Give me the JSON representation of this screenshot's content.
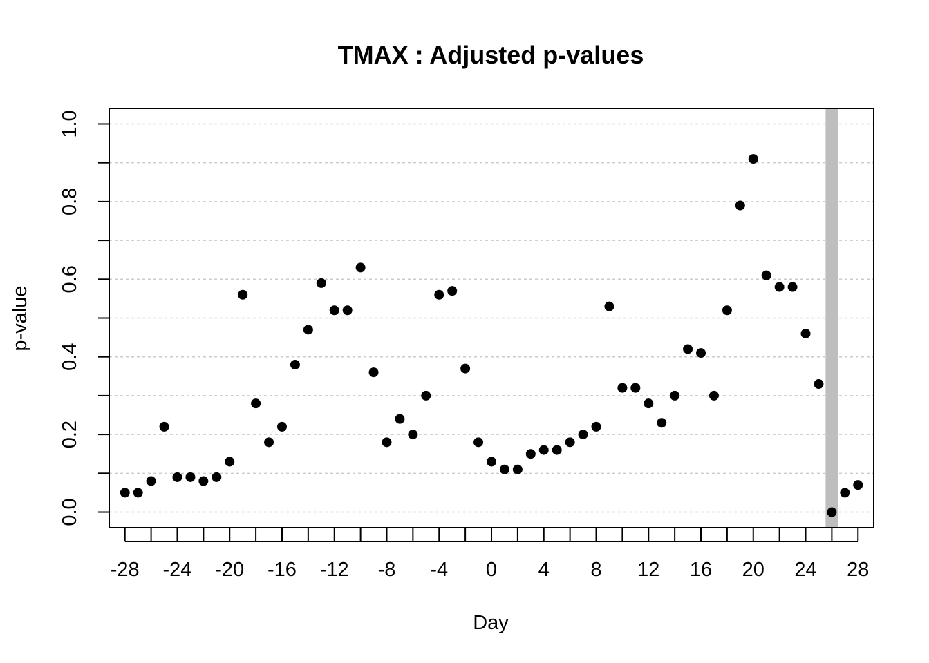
{
  "chart_data": {
    "type": "scatter",
    "title": "TMAX : Adjusted p-values",
    "xlabel": "Day",
    "ylabel": "p-value",
    "xlim": [
      -29.2,
      29.2
    ],
    "ylim": [
      -0.04,
      1.04
    ],
    "x_ticks": [
      -28,
      -26,
      -24,
      -22,
      -20,
      -18,
      -16,
      -14,
      -12,
      -10,
      -8,
      -6,
      -4,
      -2,
      0,
      2,
      4,
      6,
      8,
      10,
      12,
      14,
      16,
      18,
      20,
      22,
      24,
      26,
      28
    ],
    "x_tick_labels": [
      "-28",
      "",
      "-24",
      "",
      "-20",
      "",
      "-16",
      "",
      "-12",
      "",
      "-8",
      "",
      "-4",
      "",
      "0",
      "",
      "4",
      "",
      "8",
      "",
      "12",
      "",
      "16",
      "",
      "20",
      "",
      "24",
      "",
      "28"
    ],
    "y_ticks": [
      0.0,
      0.1,
      0.2,
      0.3,
      0.4,
      0.5,
      0.6,
      0.7,
      0.8,
      0.9,
      1.0
    ],
    "y_tick_labels": [
      "0.0",
      "",
      "0.2",
      "",
      "0.4",
      "",
      "0.6",
      "",
      "0.8",
      "",
      "1.0"
    ],
    "grid": "horizontal dotted",
    "highlight_x": 26,
    "colors": {
      "points": "#000000",
      "grid": "#cccccc",
      "highlight": "#bebebe"
    },
    "x": [
      -28,
      -27,
      -26,
      -25,
      -24,
      -23,
      -22,
      -21,
      -20,
      -19,
      -18,
      -17,
      -16,
      -15,
      -14,
      -13,
      -12,
      -11,
      -10,
      -9,
      -8,
      -7,
      -6,
      -5,
      -4,
      -3,
      -2,
      -1,
      0,
      1,
      2,
      3,
      4,
      5,
      6,
      7,
      8,
      9,
      10,
      11,
      12,
      13,
      14,
      15,
      16,
      17,
      18,
      19,
      20,
      21,
      22,
      23,
      24,
      25,
      26,
      27,
      28
    ],
    "y": [
      0.05,
      0.05,
      0.08,
      0.22,
      0.09,
      0.09,
      0.08,
      0.09,
      0.13,
      0.56,
      0.28,
      0.18,
      0.22,
      0.38,
      0.47,
      0.59,
      0.52,
      0.52,
      0.63,
      0.36,
      0.18,
      0.24,
      0.2,
      0.3,
      0.56,
      0.57,
      0.37,
      0.18,
      0.13,
      0.11,
      0.11,
      0.15,
      0.16,
      0.16,
      0.18,
      0.2,
      0.22,
      0.53,
      0.32,
      0.32,
      0.28,
      0.23,
      0.3,
      0.42,
      0.41,
      0.3,
      0.52,
      0.79,
      0.91,
      0.61,
      0.58,
      0.58,
      0.46,
      0.33,
      0.0,
      0.05,
      0.07
    ]
  }
}
